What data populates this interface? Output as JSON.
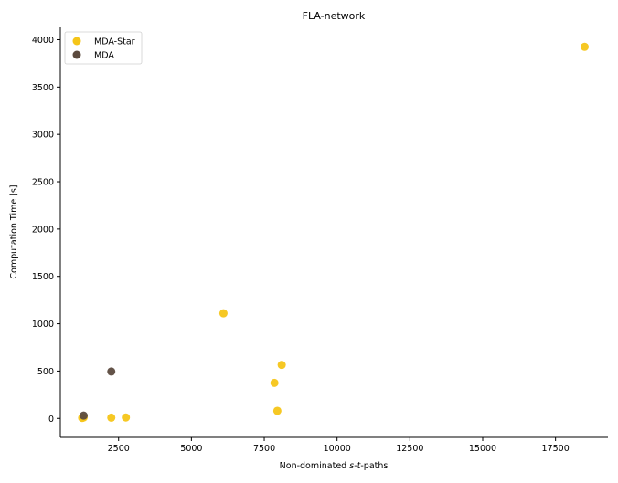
{
  "chart_data": {
    "type": "scatter",
    "title": "FLA-network",
    "xlabel_parts": [
      "Non-dominated ",
      "s",
      "-",
      "t",
      "-paths"
    ],
    "ylabel": "Computation Time [s]",
    "xlim": [
      500,
      19300
    ],
    "ylim": [
      -200,
      4130
    ],
    "xticks": [
      2500,
      5000,
      7500,
      10000,
      12500,
      15000,
      17500
    ],
    "yticks": [
      0,
      500,
      1000,
      1500,
      2000,
      2500,
      3000,
      3500,
      4000
    ],
    "legend_position": "top-left",
    "grid": false,
    "series": [
      {
        "name": "MDA-Star",
        "color": "#f5c518",
        "points": [
          {
            "x": 1250,
            "y": 5
          },
          {
            "x": 1300,
            "y": 10
          },
          {
            "x": 2250,
            "y": 8
          },
          {
            "x": 2750,
            "y": 10
          },
          {
            "x": 6100,
            "y": 1110
          },
          {
            "x": 7850,
            "y": 375
          },
          {
            "x": 7950,
            "y": 80
          },
          {
            "x": 8100,
            "y": 565
          },
          {
            "x": 18500,
            "y": 3925
          }
        ]
      },
      {
        "name": "MDA",
        "color": "#5b4a3e",
        "points": [
          {
            "x": 1300,
            "y": 30
          },
          {
            "x": 2250,
            "y": 495
          }
        ]
      }
    ]
  }
}
